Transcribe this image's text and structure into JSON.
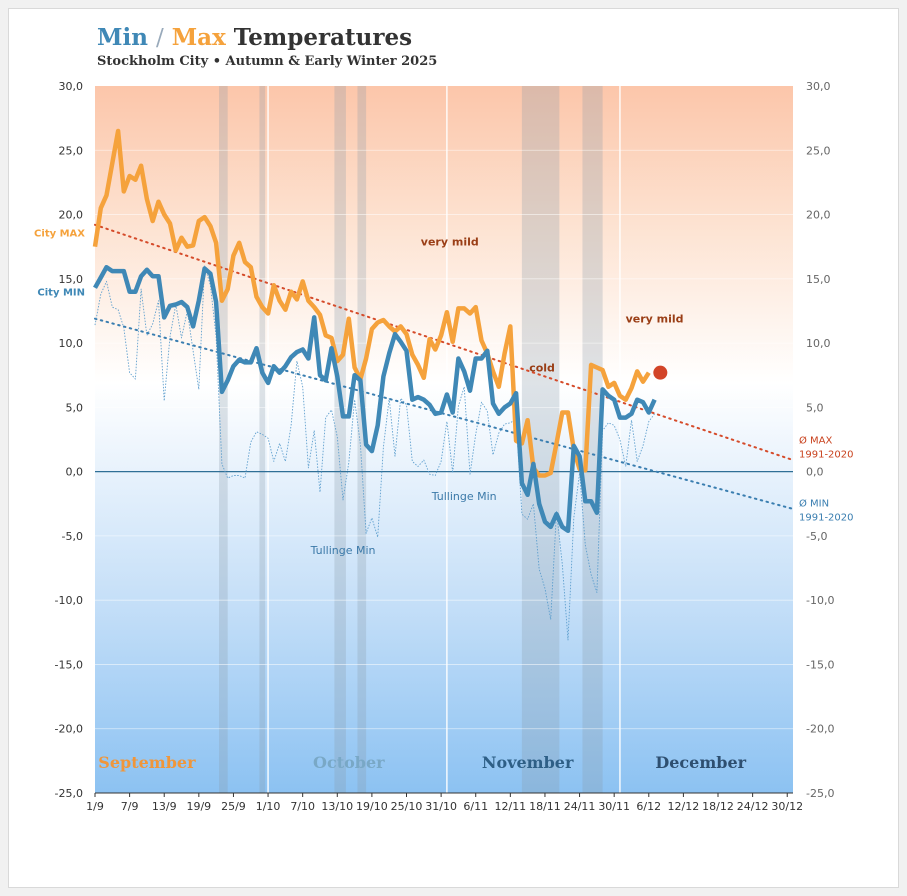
{
  "chart_data": {
    "type": "line",
    "title": {
      "min": "Min",
      "sep": "/",
      "max": "Max",
      "rest": "Temperatures"
    },
    "subtitle": "Stockholm City • Autumn & Early Winter 2025",
    "ylim": [
      -25,
      30
    ],
    "y_ticks": [
      "30,0",
      "25,0",
      "20,0",
      "15,0",
      "10,0",
      "5,0",
      "0,0",
      "-5,0",
      "-10,0",
      "-15,0",
      "-20,0",
      "-25,0"
    ],
    "x_range_days": [
      0,
      121
    ],
    "x_ticks": [
      {
        "day": 0,
        "label": "1/9"
      },
      {
        "day": 6,
        "label": "7/9"
      },
      {
        "day": 12,
        "label": "13/9"
      },
      {
        "day": 18,
        "label": "19/9"
      },
      {
        "day": 24,
        "label": "25/9"
      },
      {
        "day": 30,
        "label": "1/10"
      },
      {
        "day": 36,
        "label": "7/10"
      },
      {
        "day": 42,
        "label": "13/10"
      },
      {
        "day": 48,
        "label": "19/10"
      },
      {
        "day": 54,
        "label": "25/10"
      },
      {
        "day": 60,
        "label": "31/10"
      },
      {
        "day": 66,
        "label": "6/11"
      },
      {
        "day": 72,
        "label": "12/11"
      },
      {
        "day": 78,
        "label": "18/11"
      },
      {
        "day": 84,
        "label": "24/11"
      },
      {
        "day": 90,
        "label": "30/11"
      },
      {
        "day": 96,
        "label": "6/12"
      },
      {
        "day": 102,
        "label": "12/12"
      },
      {
        "day": 108,
        "label": "18/12"
      },
      {
        "day": 114,
        "label": "24/12"
      },
      {
        "day": 120,
        "label": "30/12"
      }
    ],
    "months": [
      {
        "name": "September",
        "day": 9,
        "color": "#f0963a"
      },
      {
        "name": "October",
        "day": 44,
        "color": "#79a8c6"
      },
      {
        "name": "November",
        "day": 75,
        "color": "#2e5f86"
      },
      {
        "name": "December",
        "day": 105,
        "color": "#2e4f70"
      }
    ],
    "month_boundaries": [
      30,
      61,
      91
    ],
    "cold_spells": [
      [
        21.5,
        23
      ],
      [
        28.5,
        29.5
      ],
      [
        41.5,
        43.5
      ],
      [
        45.5,
        47
      ],
      [
        74,
        80.5
      ],
      [
        84.5,
        88
      ]
    ],
    "series": [
      {
        "name": "City MAX",
        "color": "#f5a23c",
        "values": [
          17.5,
          20.5,
          21.5,
          24,
          26.5,
          21.8,
          23,
          22.7,
          23.8,
          21.2,
          19.5,
          21,
          20,
          19.3,
          17.2,
          18.2,
          17.5,
          17.6,
          19.5,
          19.8,
          19.1,
          17.8,
          13.3,
          14.2,
          16.8,
          17.8,
          16.3,
          15.9,
          13.6,
          12.8,
          12.3,
          14.5,
          13.3,
          12.6,
          14,
          13.4,
          14.8,
          13.3,
          12.8,
          12.2,
          10.6,
          10.4,
          8.6,
          9.1,
          11.9,
          8.1,
          7.2,
          8.8,
          11.1,
          11.6,
          11.8,
          11.3,
          10.9,
          11.3,
          10.7,
          9.1,
          8.3,
          7.3,
          10.3,
          9.5,
          10.6,
          12.4,
          10.1,
          12.7,
          12.7,
          12.3,
          12.8,
          10.2,
          9.2,
          7.8,
          6.6,
          9.2,
          11.3,
          2.4,
          2.2,
          4,
          0.3,
          -0.3,
          -0.3,
          -0.1,
          2.2,
          4.6,
          4.6,
          1.7,
          0.2,
          0.1,
          8.3,
          8.1,
          7.9,
          6.6,
          6.9,
          5.9,
          5.6,
          6.5,
          7.8,
          7.0,
          7.7
        ]
      },
      {
        "name": "City MIN",
        "color": "#3f88b6",
        "values": [
          14.3,
          15.1,
          15.9,
          15.6,
          15.6,
          15.6,
          14,
          14,
          15.2,
          15.7,
          15.2,
          15.2,
          12,
          12.9,
          13,
          13.2,
          12.8,
          11.3,
          13.3,
          15.8,
          15.4,
          13.2,
          6.2,
          7.1,
          8.2,
          8.7,
          8.5,
          8.5,
          9.6,
          7.7,
          6.9,
          8.2,
          7.7,
          8.2,
          8.9,
          9.3,
          9.5,
          8.8,
          12,
          7.5,
          7.1,
          9.6,
          7.4,
          4.3,
          4.3,
          7.5,
          7.1,
          2.1,
          1.6,
          3.6,
          7.4,
          9.2,
          10.7,
          10.1,
          9.4,
          5.6,
          5.8,
          5.6,
          5.2,
          4.5,
          4.6,
          6,
          4.6,
          8.8,
          7.8,
          6.3,
          8.8,
          8.8,
          9.4,
          5.3,
          4.5,
          5,
          5.3,
          6.1,
          -0.9,
          -1.8,
          0.6,
          -2.5,
          -3.9,
          -4.3,
          -3.3,
          -4.3,
          -4.6,
          2,
          1.2,
          -2.3,
          -2.3,
          -3.2,
          6.4,
          5.9,
          5.6,
          4.2,
          4.2,
          4.5,
          5.6,
          5.4,
          4.6,
          5.6
        ]
      },
      {
        "name": "Tullinge Min",
        "color": "#5a9ccc",
        "values": [
          11.4,
          13.8,
          14.8,
          12.8,
          12.6,
          11.2,
          7.7,
          7.2,
          14.2,
          10.6,
          11.5,
          13.3,
          5.5,
          10.5,
          13,
          10.4,
          12.5,
          9.4,
          6.4,
          16,
          14.5,
          10.5,
          0.6,
          -0.5,
          -0.3,
          -0.3,
          -0.5,
          2.3,
          3.1,
          2.9,
          2.6,
          0.8,
          2.2,
          0.8,
          3.6,
          8.6,
          6.6,
          0.3,
          3.2,
          -1.6,
          4.2,
          4.8,
          2.7,
          -2.2,
          0.7,
          5.6,
          2.1,
          -4.8,
          -3.6,
          -5.1,
          1.9,
          5.7,
          1.2,
          5.7,
          5.2,
          0.8,
          0.4,
          0.9,
          -0.2,
          -0.3,
          0.8,
          3.9,
          -0.1,
          5.1,
          6.6,
          -0.2,
          2.9,
          5.4,
          4.7,
          1.3,
          3,
          3.7,
          3.8,
          4.1,
          -3.3,
          -3.7,
          -2.5,
          -7.6,
          -9.1,
          -11.5,
          -3.1,
          -7.2,
          -13.1,
          -3.6,
          -0.1,
          -5.7,
          -8,
          -9.4,
          3.2,
          3.8,
          3.6,
          2.5,
          0.4,
          4,
          0.8,
          2,
          3.9,
          4.5
        ]
      }
    ],
    "normals": [
      {
        "name": "Ø MAX",
        "period": "1991-2020",
        "color": "#d54b2a",
        "start": 19.2,
        "end": 0.9
      },
      {
        "name": "Ø MIN",
        "period": "1991-2020",
        "color": "#3a7eb0",
        "start": 11.9,
        "end": -2.9
      }
    ],
    "zero_line": 0,
    "highlight_point": {
      "day": 98,
      "value": 7.7,
      "color": "#d24428"
    },
    "series_labels": {
      "max": "City MAX",
      "min": "City MIN"
    },
    "annotations": [
      {
        "text": "very mild",
        "day": 61.5,
        "value": 17.6
      },
      {
        "text": "very mild",
        "day": 97,
        "value": 11.6
      },
      {
        "text": "cold",
        "day": 77.5,
        "value": 7.8
      },
      {
        "text": "Tullinge Min",
        "day": 64,
        "value": -2.2
      },
      {
        "text": "Tullinge Min",
        "day": 43,
        "value": -6.4
      }
    ],
    "right_labels": {
      "max": [
        "Ø MAX",
        "1991-2020"
      ],
      "min": [
        "Ø MIN",
        "1991-2020"
      ]
    }
  }
}
